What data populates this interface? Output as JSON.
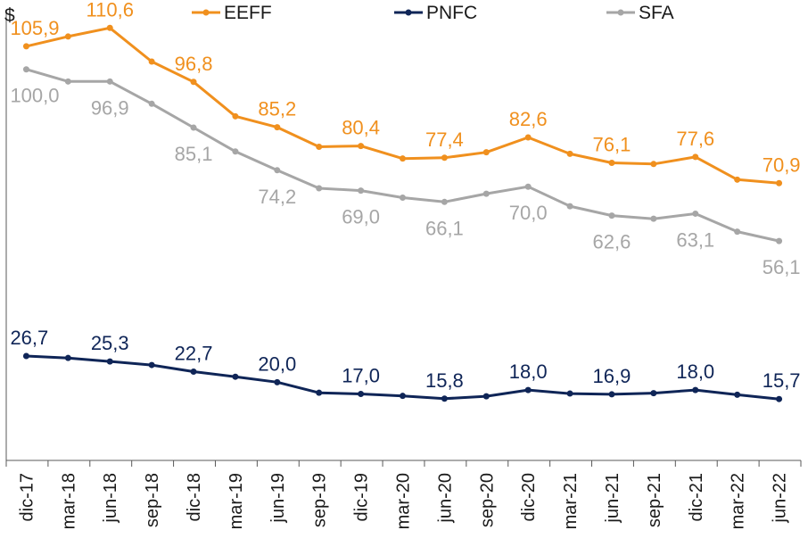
{
  "chart_data": {
    "type": "line",
    "title": "",
    "ylabel": "$",
    "xlabel": "",
    "ylim": [
      0,
      115
    ],
    "grid": false,
    "legend_position": "top",
    "categories": [
      "dic-17",
      "mar-18",
      "jun-18",
      "sep-18",
      "dic-18",
      "mar-19",
      "jun-19",
      "sep-19",
      "dic-19",
      "mar-20",
      "jun-20",
      "sep-20",
      "dic-20",
      "mar-21",
      "jun-21",
      "sep-21",
      "dic-21",
      "mar-22",
      "jun-22"
    ],
    "series": [
      {
        "name": "EEFF",
        "color": "#F0901E",
        "values": [
          105.9,
          108.4,
          110.6,
          102.0,
          96.8,
          88.0,
          85.2,
          80.2,
          80.4,
          77.2,
          77.4,
          78.8,
          82.6,
          78.4,
          76.1,
          75.8,
          77.6,
          71.8,
          70.9
        ],
        "labels": {
          "0": "105,9",
          "2": "110,6",
          "4": "96,8",
          "6": "85,2",
          "8": "80,4",
          "10": "77,4",
          "12": "82,6",
          "14": "76,1",
          "16": "77,6",
          "18": "70,9"
        }
      },
      {
        "name": "PNFC",
        "color": "#0F2557",
        "values": [
          26.7,
          26.2,
          25.3,
          24.4,
          22.7,
          21.4,
          20.0,
          17.3,
          17.0,
          16.5,
          15.8,
          16.4,
          18.0,
          17.1,
          16.9,
          17.2,
          18.0,
          16.8,
          15.7
        ],
        "labels": {
          "0": "26,7",
          "2": "25,3",
          "4": "22,7",
          "6": "20,0",
          "8": "17,0",
          "10": "15,8",
          "12": "18,0",
          "14": "16,9",
          "16": "18,0",
          "18": "15,7"
        }
      },
      {
        "name": "SFA",
        "color": "#A6A6A6",
        "values": [
          100.0,
          96.9,
          96.9,
          91.2,
          85.1,
          79.0,
          74.2,
          69.6,
          69.0,
          67.2,
          66.1,
          68.2,
          70.0,
          65.0,
          62.6,
          61.8,
          63.1,
          58.5,
          56.1
        ],
        "labels": {
          "0": "100,0",
          "2": "96,9",
          "4": "85,1",
          "6": "74,2",
          "8": "69,0",
          "10": "66,1",
          "12": "70,0",
          "14": "62,6",
          "16": "63,1",
          "18": "56,1"
        }
      }
    ]
  }
}
